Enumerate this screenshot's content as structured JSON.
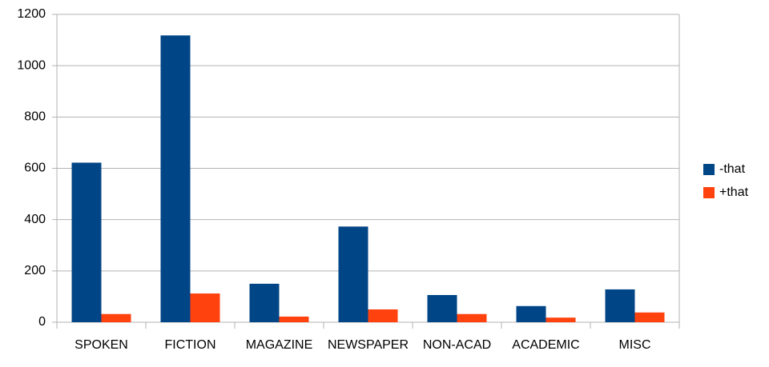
{
  "chart_data": {
    "type": "bar",
    "categories": [
      "SPOKEN",
      "FICTION",
      "MAGAZINE",
      "NEWSPAPER",
      "NON-ACAD",
      "ACADEMIC",
      "MISC"
    ],
    "series": [
      {
        "name": "-that",
        "color": "#004586",
        "values": [
          622,
          1118,
          150,
          373,
          106,
          63,
          128
        ]
      },
      {
        "name": "+that",
        "color": "#ff420e",
        "values": [
          32,
          112,
          22,
          50,
          32,
          18,
          38
        ]
      }
    ],
    "ylim": [
      0,
      1200
    ],
    "yticks": [
      0,
      200,
      400,
      600,
      800,
      1000,
      1200
    ],
    "grid": true,
    "legend": "right"
  }
}
